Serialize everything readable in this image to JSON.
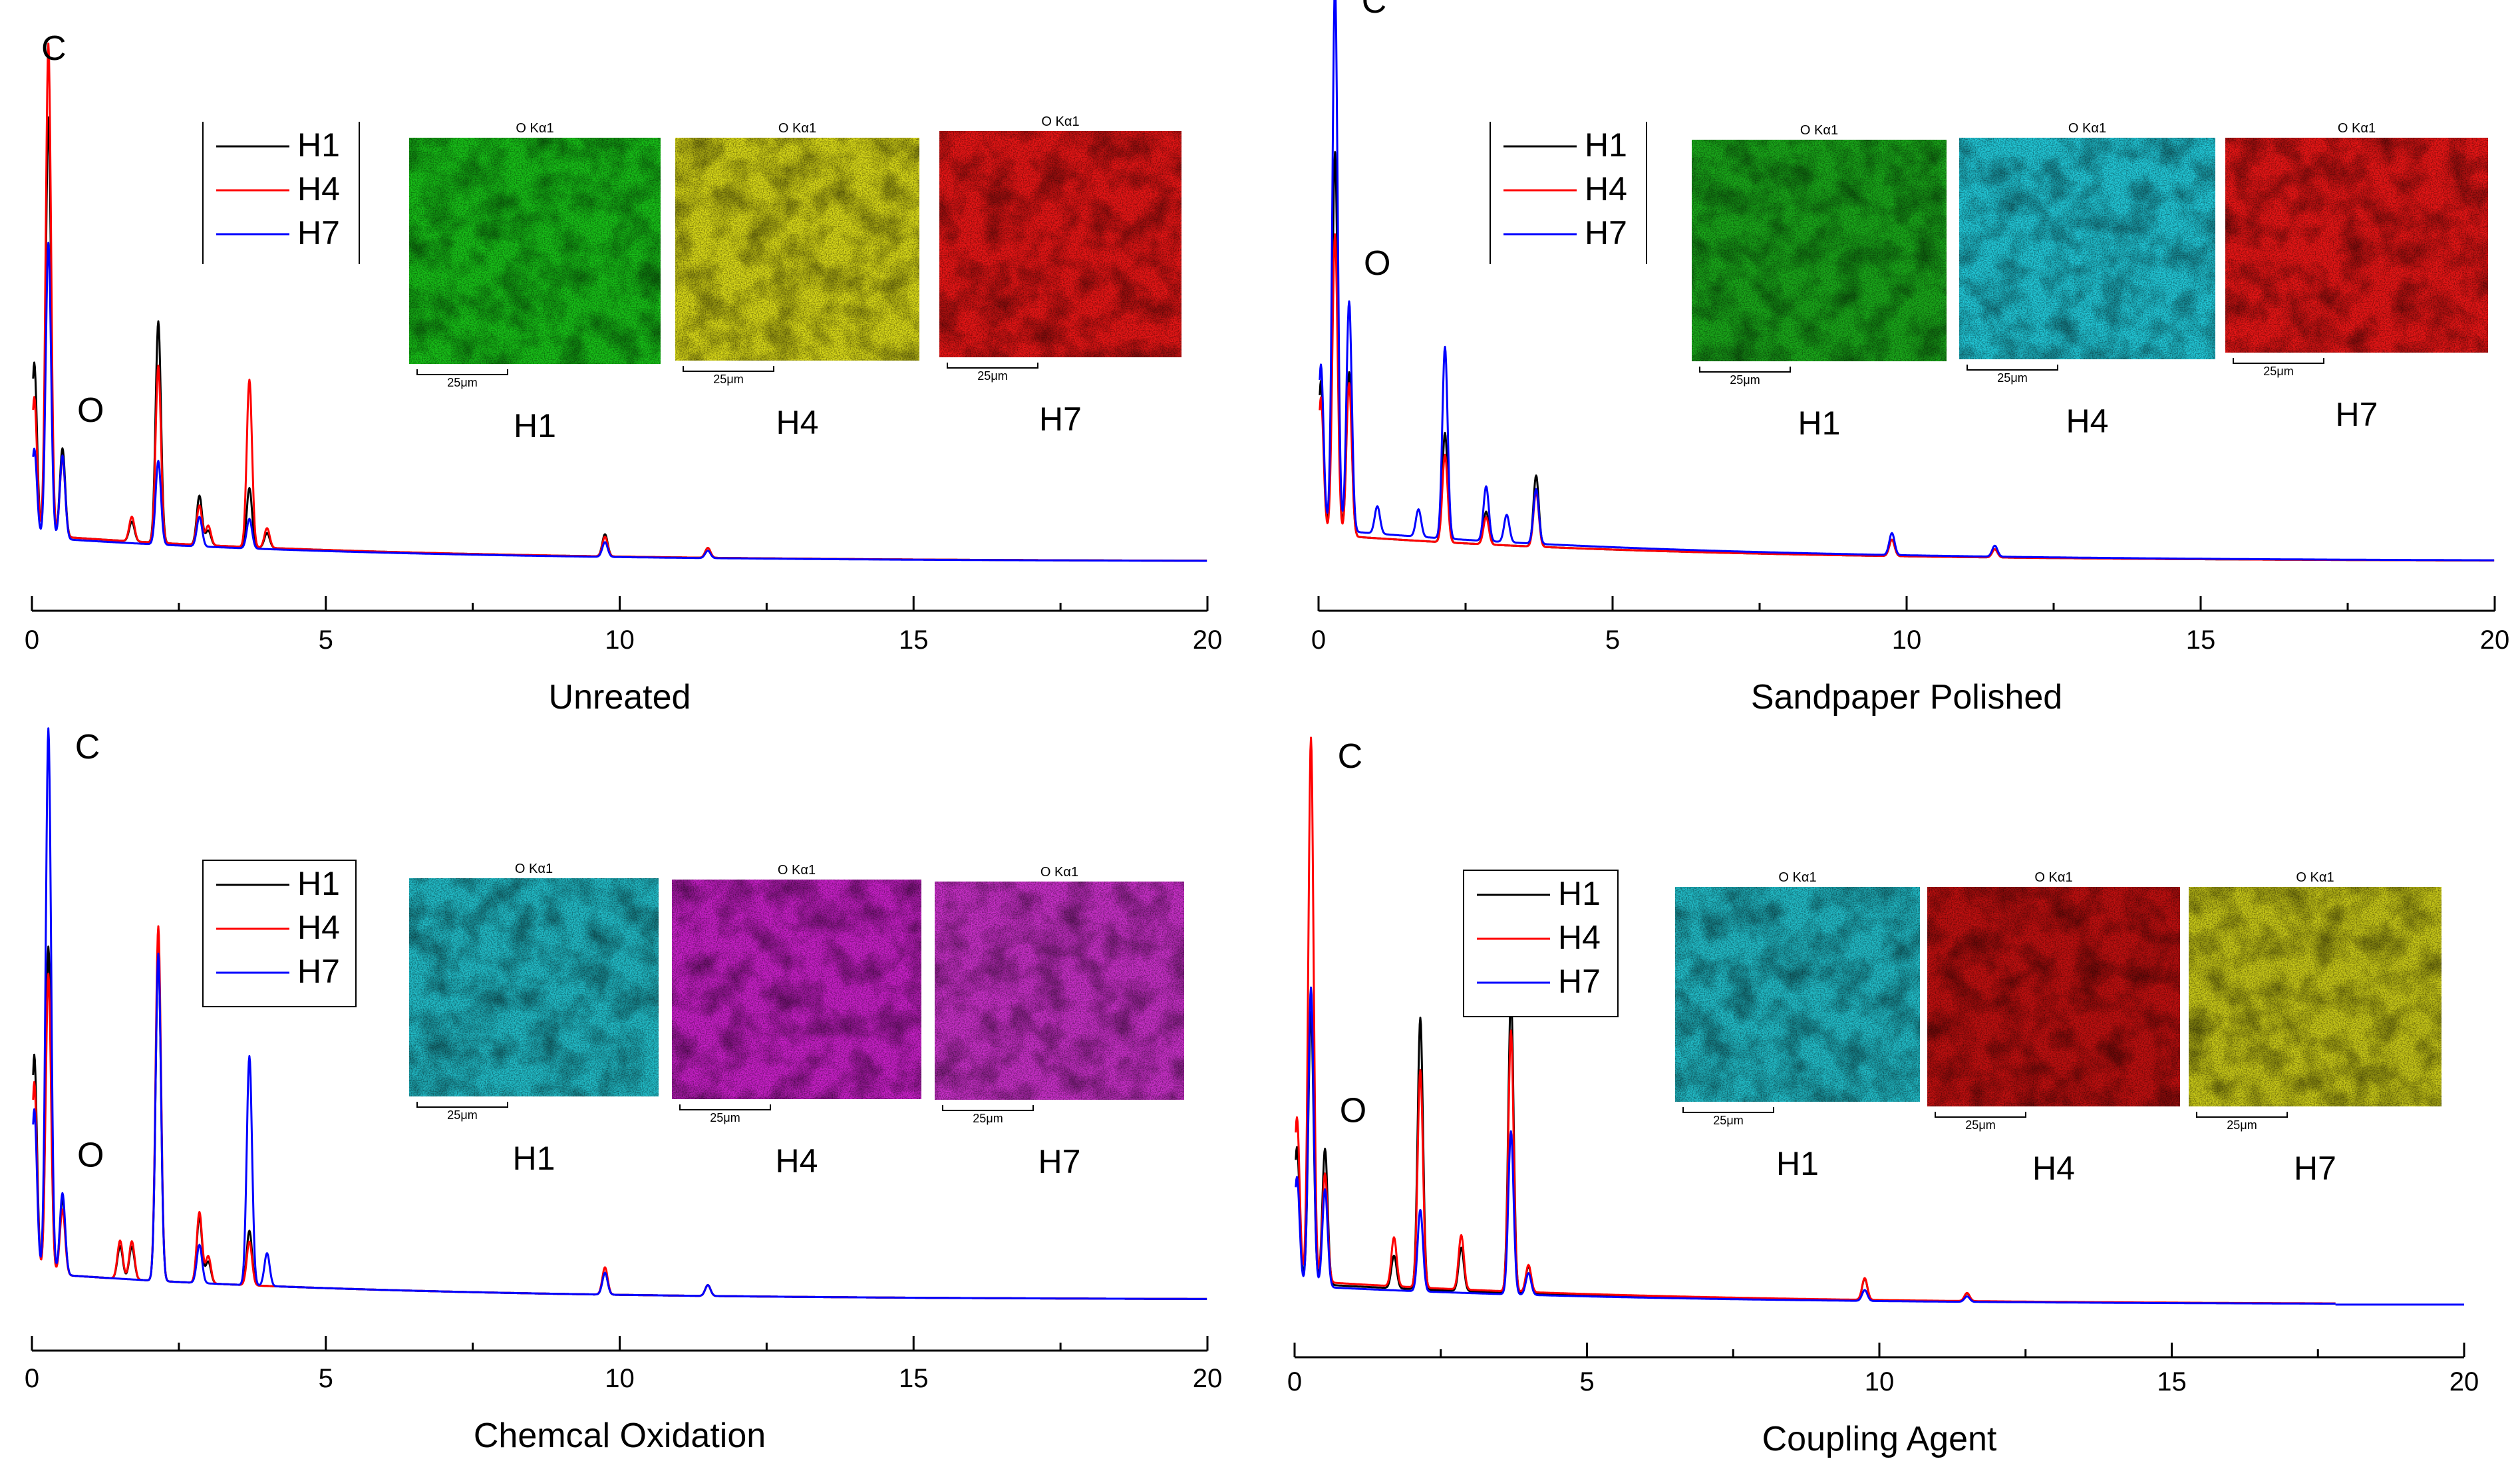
{
  "chart_data": [
    {
      "type": "line",
      "title": "Unreated",
      "xlabel": "Unreated",
      "ylabel": "",
      "xlim": [
        0,
        20
      ],
      "xticks": [
        0,
        5,
        10,
        15,
        20
      ],
      "peak_labels": [
        {
          "text": "C",
          "x": 0.28
        },
        {
          "text": "O",
          "x": 0.52
        }
      ],
      "legend": {
        "placement": "top-left",
        "boxed": false
      },
      "series": [
        {
          "name": "H1",
          "color": "#000000",
          "baseline": 0.055,
          "peaks": [
            [
              0.04,
              0.35
            ],
            [
              0.28,
              0.85
            ],
            [
              0.52,
              0.18
            ],
            [
              1.7,
              0.04
            ],
            [
              2.15,
              0.45
            ],
            [
              2.85,
              0.1
            ],
            [
              3.0,
              0.03
            ],
            [
              3.7,
              0.12
            ],
            [
              4.0,
              0.03
            ],
            [
              9.75,
              0.045
            ],
            [
              11.5,
              0.02
            ]
          ]
        },
        {
          "name": "H4",
          "color": "#ff0000",
          "baseline": 0.055,
          "peaks": [
            [
              0.04,
              0.28
            ],
            [
              0.28,
              1.0
            ],
            [
              0.52,
              0.16
            ],
            [
              1.7,
              0.05
            ],
            [
              2.15,
              0.36
            ],
            [
              2.85,
              0.08
            ],
            [
              3.0,
              0.04
            ],
            [
              3.7,
              0.34
            ],
            [
              4.0,
              0.04
            ],
            [
              9.75,
              0.04
            ],
            [
              11.5,
              0.02
            ]
          ]
        },
        {
          "name": "H7",
          "color": "#0000ff",
          "baseline": 0.05,
          "peaks": [
            [
              0.04,
              0.18
            ],
            [
              0.28,
              0.6
            ],
            [
              0.52,
              0.17
            ],
            [
              2.15,
              0.17
            ],
            [
              2.85,
              0.06
            ],
            [
              3.7,
              0.06
            ],
            [
              9.75,
              0.03
            ],
            [
              11.5,
              0.015
            ]
          ]
        }
      ],
      "maps": {
        "element_label": "O Kα1",
        "scale_label": "25μm",
        "panels": [
          {
            "label": "H1",
            "color": "#18c018"
          },
          {
            "label": "H4",
            "color": "#d8d818"
          },
          {
            "label": "H7",
            "color": "#e81616"
          }
        ]
      }
    },
    {
      "type": "line",
      "title": "Sandpaper Polished",
      "xlabel": "Sandpaper Polished",
      "ylabel": "",
      "xlim": [
        0,
        20
      ],
      "xticks": [
        0,
        5,
        10,
        15,
        20
      ],
      "peak_labels": [
        {
          "text": "C",
          "x": 0.28
        },
        {
          "text": "O",
          "x": 0.52
        }
      ],
      "legend": {
        "placement": "top-left",
        "boxed": false
      },
      "series": [
        {
          "name": "H1",
          "color": "#000000",
          "baseline": 0.05,
          "peaks": [
            [
              0.04,
              0.28
            ],
            [
              0.28,
              0.7
            ],
            [
              0.52,
              0.3
            ],
            [
              2.15,
              0.2
            ],
            [
              2.85,
              0.06
            ],
            [
              3.7,
              0.13
            ],
            [
              9.75,
              0.03
            ],
            [
              11.5,
              0.015
            ]
          ]
        },
        {
          "name": "H4",
          "color": "#ff0000",
          "baseline": 0.05,
          "peaks": [
            [
              0.04,
              0.25
            ],
            [
              0.28,
              0.55
            ],
            [
              0.52,
              0.28
            ],
            [
              2.15,
              0.16
            ],
            [
              2.85,
              0.05
            ],
            [
              3.7,
              0.1
            ],
            [
              9.75,
              0.03
            ],
            [
              11.5,
              0.015
            ]
          ]
        },
        {
          "name": "H7",
          "color": "#0000ff",
          "baseline": 0.06,
          "peaks": [
            [
              0.04,
              0.3
            ],
            [
              0.28,
              1.0
            ],
            [
              0.52,
              0.42
            ],
            [
              1.0,
              0.05
            ],
            [
              1.7,
              0.05
            ],
            [
              2.15,
              0.35
            ],
            [
              2.85,
              0.1
            ],
            [
              3.2,
              0.05
            ],
            [
              3.7,
              0.1
            ],
            [
              9.75,
              0.04
            ],
            [
              11.5,
              0.02
            ]
          ]
        }
      ],
      "maps": {
        "element_label": "O Kα1",
        "scale_label": "25μm",
        "panels": [
          {
            "label": "H1",
            "color": "#1aa81a"
          },
          {
            "label": "H4",
            "color": "#22c8d8"
          },
          {
            "label": "H7",
            "color": "#e81616"
          }
        ]
      }
    },
    {
      "type": "line",
      "title": "Chemcal Oxidation",
      "xlabel": "Chemcal Oxidation",
      "ylabel": "",
      "xlim": [
        0,
        20
      ],
      "xticks": [
        0,
        5,
        10,
        15,
        20
      ],
      "peak_labels": [
        {
          "text": "C",
          "x": 0.28
        },
        {
          "text": "O",
          "x": 0.52
        }
      ],
      "legend": {
        "placement": "top-left",
        "boxed": true
      },
      "series": [
        {
          "name": "H1",
          "color": "#000000",
          "baseline": 0.05,
          "peaks": [
            [
              0.04,
              0.4
            ],
            [
              0.28,
              0.6
            ],
            [
              0.52,
              0.14
            ],
            [
              1.5,
              0.06
            ],
            [
              1.7,
              0.06
            ],
            [
              2.15,
              0.6
            ],
            [
              2.85,
              0.12
            ],
            [
              3.0,
              0.04
            ],
            [
              3.7,
              0.1
            ],
            [
              9.75,
              0.04
            ],
            [
              11.5,
              0.02
            ]
          ]
        },
        {
          "name": "H4",
          "color": "#ff0000",
          "baseline": 0.05,
          "peaks": [
            [
              0.04,
              0.35
            ],
            [
              0.28,
              0.55
            ],
            [
              0.52,
              0.12
            ],
            [
              1.5,
              0.07
            ],
            [
              1.7,
              0.07
            ],
            [
              2.15,
              0.65
            ],
            [
              2.85,
              0.13
            ],
            [
              3.0,
              0.05
            ],
            [
              3.7,
              0.08
            ],
            [
              9.75,
              0.05
            ],
            [
              11.5,
              0.02
            ]
          ]
        },
        {
          "name": "H7",
          "color": "#0000ff",
          "baseline": 0.05,
          "peaks": [
            [
              0.04,
              0.3
            ],
            [
              0.28,
              1.0
            ],
            [
              0.52,
              0.15
            ],
            [
              2.15,
              0.6
            ],
            [
              2.85,
              0.07
            ],
            [
              3.7,
              0.42
            ],
            [
              4.0,
              0.06
            ],
            [
              9.75,
              0.04
            ],
            [
              11.5,
              0.02
            ]
          ]
        }
      ],
      "maps": {
        "element_label": "O Kα1",
        "scale_label": "25μm",
        "panels": [
          {
            "label": "H1",
            "color": "#22bcc8"
          },
          {
            "label": "H4",
            "color": "#c820c8"
          },
          {
            "label": "H7",
            "color": "#c830c8"
          }
        ]
      }
    },
    {
      "type": "line",
      "title": "Coupling Agent",
      "xlabel": "Coupling Agent",
      "ylabel": "",
      "xlim": [
        0,
        20
      ],
      "xticks": [
        0,
        5,
        10,
        15,
        20
      ],
      "peak_labels": [
        {
          "text": "C",
          "x": 0.28
        },
        {
          "text": "O",
          "x": 0.52
        }
      ],
      "legend": {
        "placement": "top-left",
        "boxed": true
      },
      "series": [
        {
          "name": "H1",
          "color": "#000000",
          "baseline": 0.04,
          "peaks": [
            [
              0.04,
              0.25
            ],
            [
              0.28,
              0.5
            ],
            [
              0.52,
              0.25
            ],
            [
              1.7,
              0.06
            ],
            [
              2.15,
              0.5
            ],
            [
              2.85,
              0.08
            ],
            [
              3.7,
              0.55
            ],
            [
              4.0,
              0.05
            ],
            [
              9.75,
              0.04
            ],
            [
              11.5,
              0.015
            ]
          ]
        },
        {
          "name": "H4",
          "color": "#ff0000",
          "baseline": 0.045,
          "peaks": [
            [
              0.04,
              0.3
            ],
            [
              0.28,
              1.0
            ],
            [
              0.52,
              0.2
            ],
            [
              1.7,
              0.09
            ],
            [
              2.15,
              0.4
            ],
            [
              2.85,
              0.1
            ],
            [
              3.7,
              0.48
            ],
            [
              4.0,
              0.05
            ],
            [
              9.75,
              0.04
            ],
            [
              11.5,
              0.015
            ]
          ]
        },
        {
          "name": "H7",
          "color": "#0000ff",
          "baseline": 0.035,
          "peaks": [
            [
              0.04,
              0.2
            ],
            [
              0.28,
              0.55
            ],
            [
              0.52,
              0.18
            ],
            [
              2.15,
              0.15
            ],
            [
              3.7,
              0.3
            ],
            [
              4.0,
              0.04
            ],
            [
              9.75,
              0.02
            ],
            [
              11.5,
              0.01
            ]
          ]
        }
      ],
      "maps": {
        "element_label": "O Kα1",
        "scale_label": "25μm",
        "panels": [
          {
            "label": "H1",
            "color": "#22bcc8"
          },
          {
            "label": "H4",
            "color": "#c01010"
          },
          {
            "label": "H7",
            "color": "#c8c818"
          }
        ]
      }
    }
  ]
}
